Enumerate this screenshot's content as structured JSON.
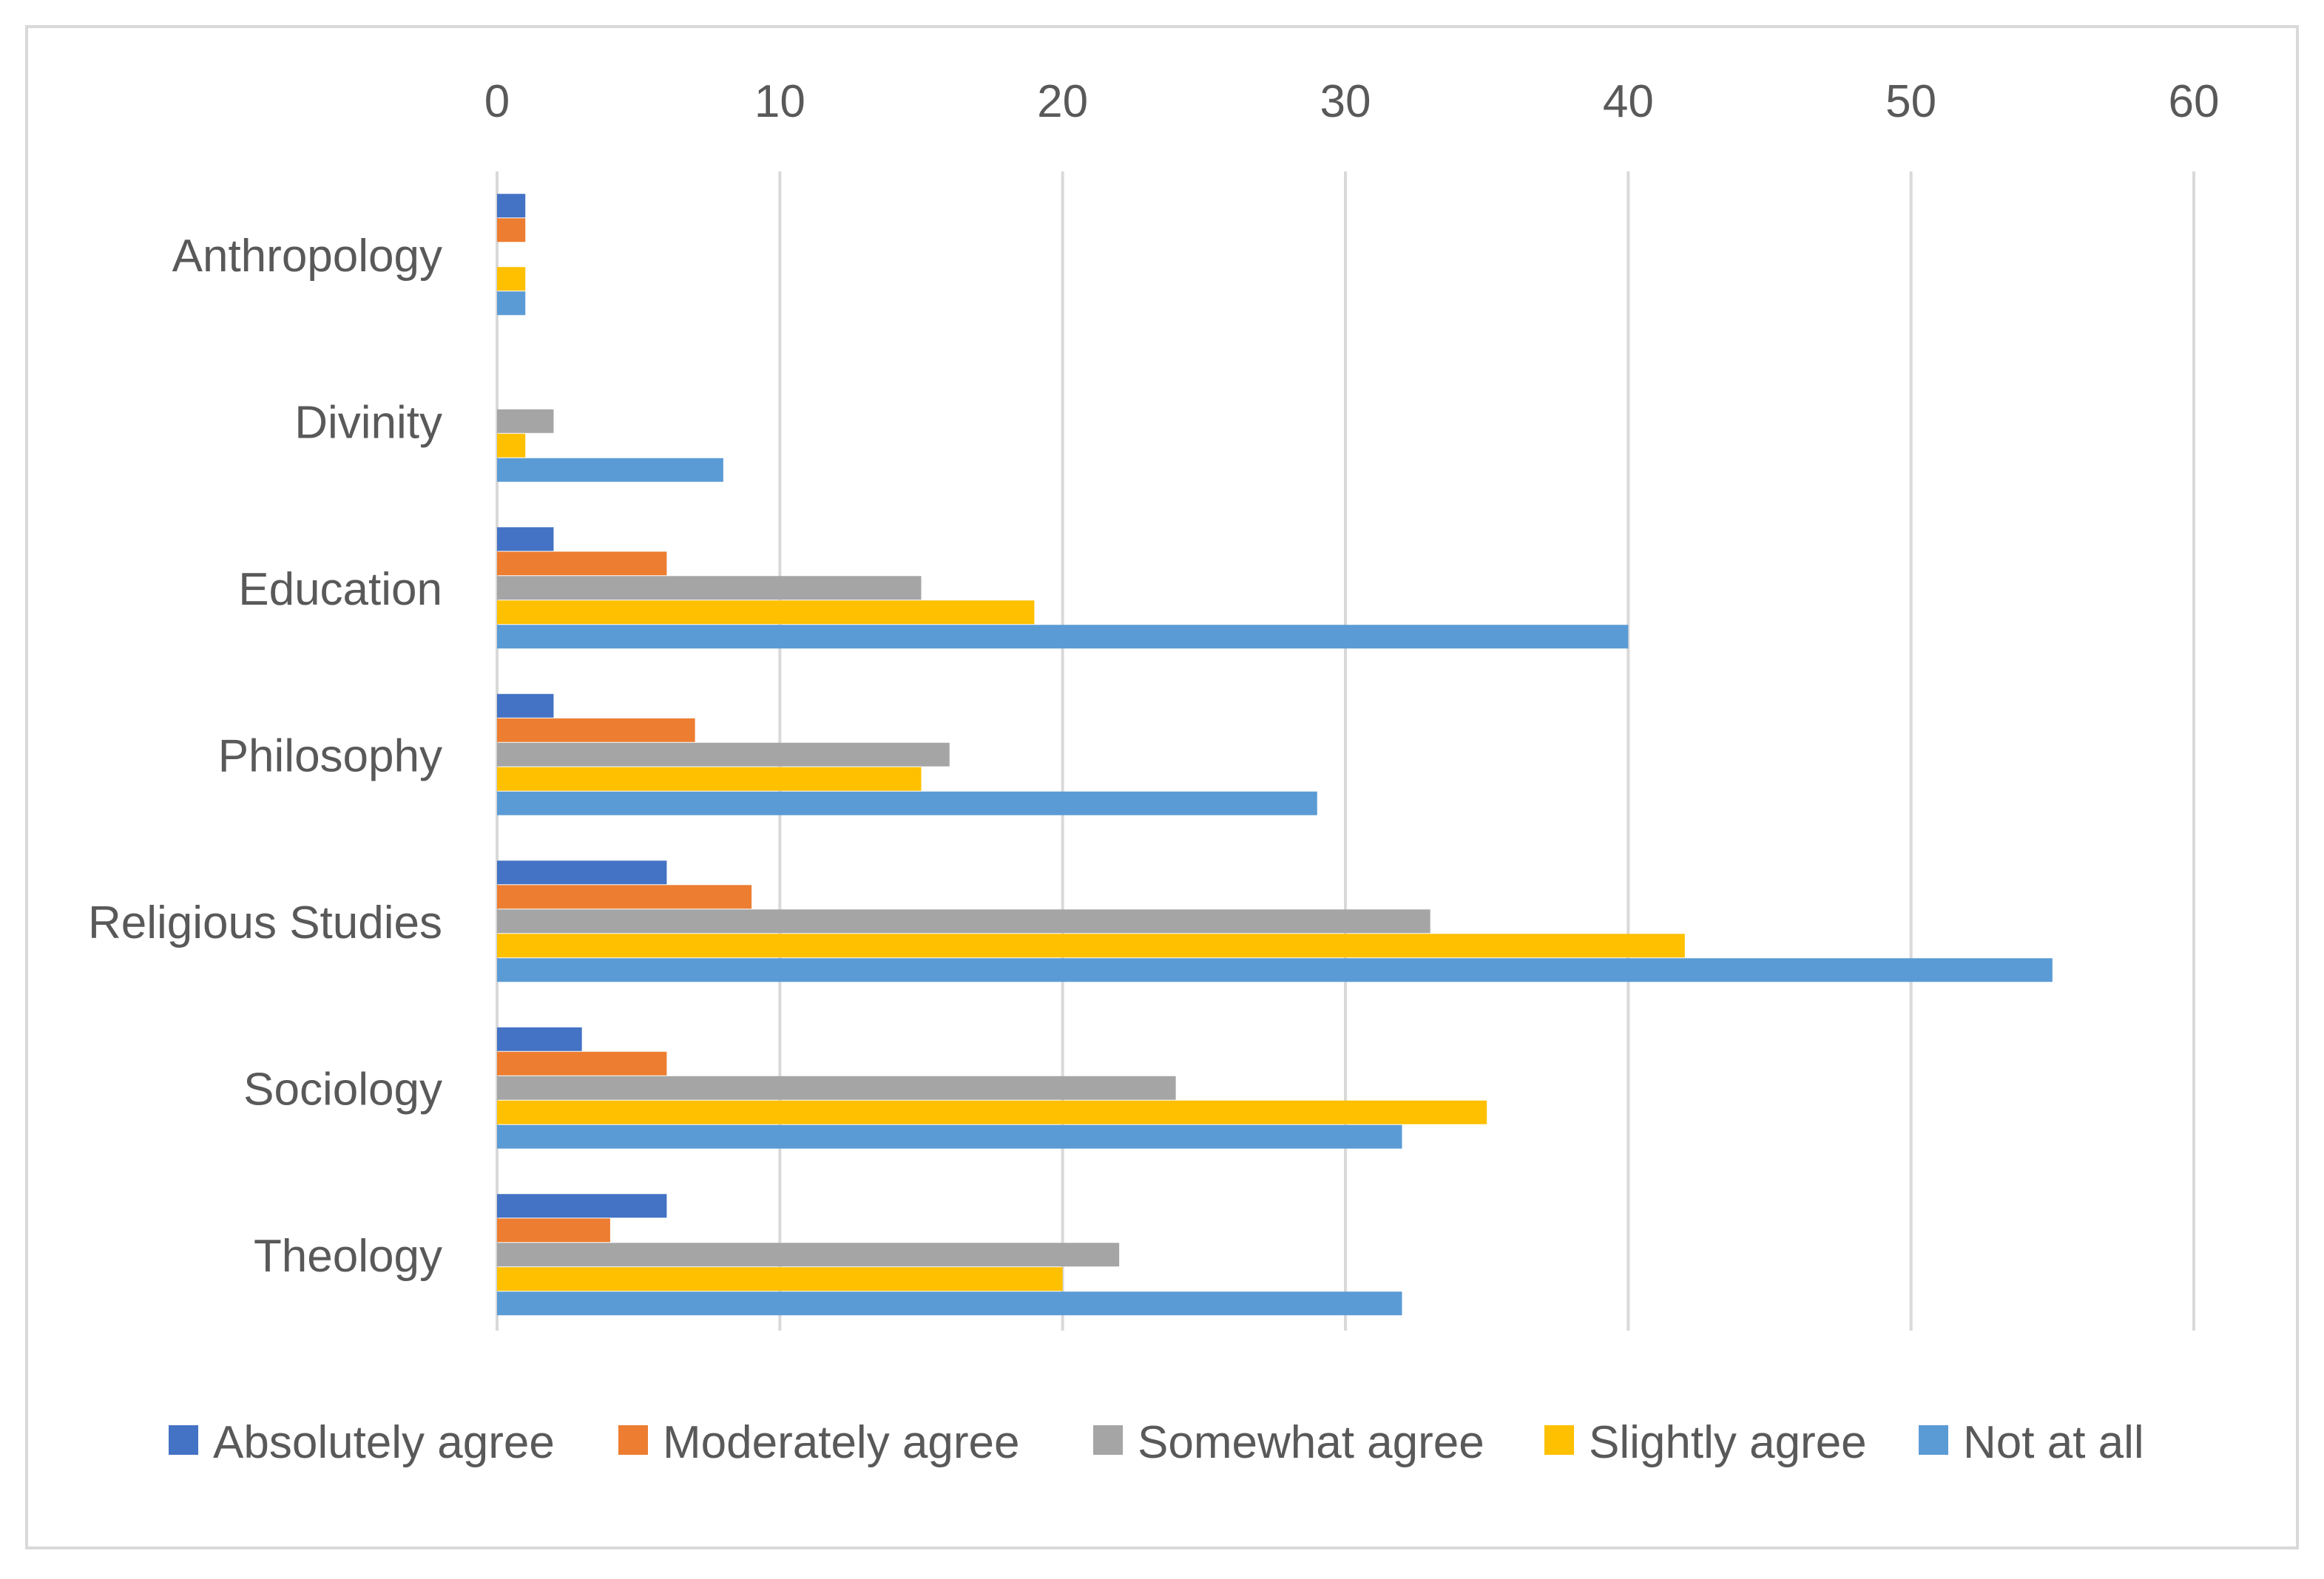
{
  "chart_data": {
    "type": "bar",
    "orientation": "horizontal",
    "title": "",
    "xlabel": "",
    "ylabel": "",
    "xlim": [
      0,
      60
    ],
    "ticks": [
      0,
      10,
      20,
      30,
      40,
      50,
      60
    ],
    "tick_labels": [
      "0",
      "10",
      "20",
      "30",
      "40",
      "50",
      "60"
    ],
    "grid": true,
    "axis_position": "top",
    "legend_position": "bottom",
    "categories": [
      "Anthropology",
      "Divinity",
      "Education",
      "Philosophy",
      "Religious Studies",
      "Sociology",
      "Theology"
    ],
    "series": [
      {
        "name": "Absolutely agree",
        "color": "#4472c4",
        "values": [
          1,
          0,
          2,
          2,
          6,
          3,
          6
        ]
      },
      {
        "name": "Moderately agree",
        "color": "#ed7d31",
        "values": [
          1,
          0,
          6,
          7,
          9,
          6,
          4
        ]
      },
      {
        "name": "Somewhat agree",
        "color": "#a5a5a5",
        "values": [
          0,
          2,
          15,
          16,
          33,
          24,
          22
        ]
      },
      {
        "name": "Slightly agree",
        "color": "#ffc000",
        "values": [
          1,
          1,
          19,
          15,
          42,
          35,
          20
        ]
      },
      {
        "name": "Not at all",
        "color": "#5b9bd5",
        "values": [
          1,
          8,
          40,
          29,
          55,
          32,
          32
        ]
      }
    ]
  }
}
